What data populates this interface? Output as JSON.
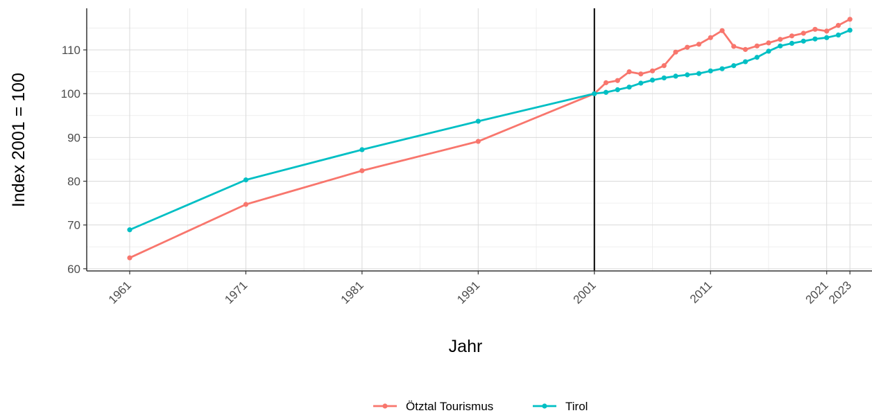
{
  "chart_data": {
    "type": "line",
    "xlabel": "Jahr",
    "ylabel": "Index 2001 = 100",
    "xlim": [
      1957.3,
      1181.0
    ],
    "ylim": [
      59.5,
      119.5
    ],
    "x_ticks": [
      1961,
      1971,
      1981,
      1991,
      2001,
      2011,
      2021,
      2023
    ],
    "y_ticks": [
      60,
      70,
      80,
      90,
      100,
      110
    ],
    "grid": true,
    "vertical_reference_line": 2001,
    "legend_position": "bottom",
    "series": [
      {
        "name": "Ötztal Tourismus",
        "color": "#F8766D",
        "x": [
          1961,
          1971,
          1981,
          1991,
          2001,
          2002,
          2003,
          2004,
          2005,
          2006,
          2007,
          2008,
          2009,
          2010,
          2011,
          2012,
          2013,
          2014,
          2015,
          2016,
          2017,
          2018,
          2019,
          2020,
          2021,
          2022,
          2023
        ],
        "values": [
          62.5,
          74.7,
          82.4,
          89.1,
          100.0,
          102.5,
          103.0,
          105.0,
          104.5,
          105.2,
          106.4,
          109.5,
          110.6,
          111.3,
          112.8,
          114.4,
          110.8,
          110.1,
          110.9,
          111.6,
          112.4,
          113.2,
          113.8,
          114.7,
          114.3,
          115.6,
          117.0
        ]
      },
      {
        "name": "Tirol",
        "color": "#00BFC4",
        "x": [
          1961,
          1971,
          1981,
          1991,
          2001,
          2002,
          2003,
          2004,
          2005,
          2006,
          2007,
          2008,
          2009,
          2010,
          2011,
          2012,
          2013,
          2014,
          2015,
          2016,
          2017,
          2018,
          2019,
          2020,
          2021,
          2022,
          2023
        ],
        "values": [
          68.9,
          80.3,
          87.2,
          93.7,
          100.0,
          100.3,
          100.9,
          101.5,
          102.4,
          103.1,
          103.6,
          104.0,
          104.3,
          104.6,
          105.2,
          105.7,
          106.4,
          107.3,
          108.3,
          109.7,
          110.9,
          111.5,
          112.0,
          112.5,
          112.8,
          113.4,
          114.5
        ]
      }
    ]
  }
}
